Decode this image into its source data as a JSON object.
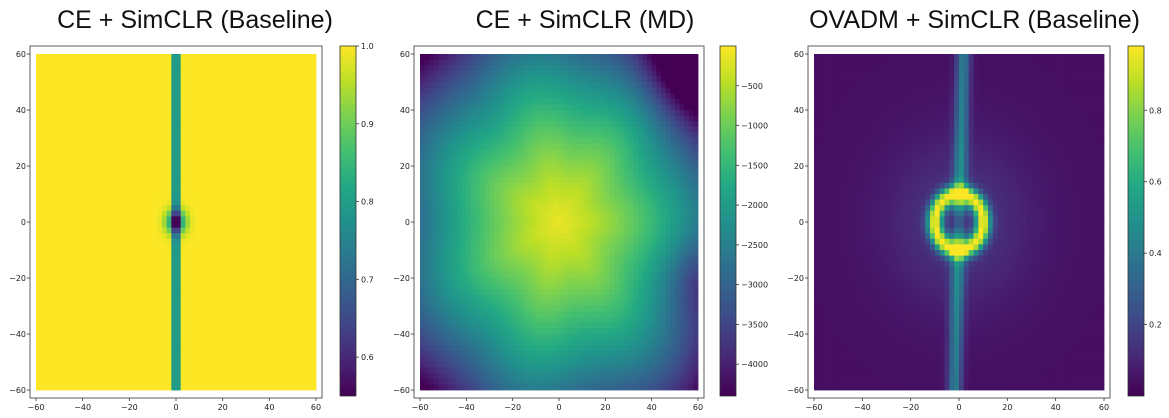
{
  "chart_data": [
    {
      "type": "heatmap",
      "title": "CE + SimCLR (Baseline)",
      "xlim": [
        -60,
        60
      ],
      "ylim": [
        -60,
        60
      ],
      "x_ticks": [
        -60,
        -40,
        -20,
        0,
        20,
        40,
        60
      ],
      "y_ticks": [
        60,
        40,
        20,
        0,
        -20,
        -40,
        -60
      ],
      "colorbar": {
        "range": [
          0.55,
          1.0
        ],
        "ticks": [
          1.0,
          0.9,
          0.8,
          0.7,
          0.6
        ],
        "tick_labels": [
          "1.0",
          "0.9",
          "0.8",
          "0.7",
          "0.6"
        ]
      },
      "colormap": "viridis",
      "pattern": "uniform high (~1.0) everywhere; narrow dark vertical band along x=0 dropping to ~0.55 with a dip at the origin"
    },
    {
      "type": "heatmap",
      "title": "CE + SimCLR (MD)",
      "xlim": [
        -60,
        60
      ],
      "ylim": [
        -60,
        60
      ],
      "x_ticks": [
        -60,
        -40,
        -20,
        0,
        20,
        40,
        60
      ],
      "y_ticks": [
        60,
        40,
        20,
        0,
        -20,
        -40,
        -60
      ],
      "colorbar": {
        "range": [
          -4400,
          0
        ],
        "ticks": [
          -500,
          -1000,
          -1500,
          -2000,
          -2500,
          -3000,
          -3500,
          -4000
        ],
        "tick_labels": [
          "−500",
          "−1000",
          "−1500",
          "−2000",
          "−2500",
          "−3000",
          "−3500",
          "−4000"
        ]
      },
      "colormap": "viridis",
      "pattern": "highest (near 0) at the centre, decreasing radially; lowest (~-4000) in the top-right corner"
    },
    {
      "type": "heatmap",
      "title": "OVADM + SimCLR (Baseline)",
      "xlim": [
        -60,
        60
      ],
      "ylim": [
        -60,
        60
      ],
      "x_ticks": [
        -60,
        -40,
        -20,
        0,
        20,
        40,
        60
      ],
      "y_ticks": [
        60,
        40,
        20,
        0,
        -20,
        -40,
        -60
      ],
      "colorbar": {
        "range": [
          0.0,
          0.98
        ],
        "ticks": [
          0.8,
          0.6,
          0.4,
          0.2
        ],
        "tick_labels": [
          "0.8",
          "0.6",
          "0.4",
          "0.2"
        ]
      },
      "colormap": "viridis",
      "pattern": "low (~0) background; bright ring of radius ~10 around the origin and a faint vertical band along x=0"
    }
  ]
}
